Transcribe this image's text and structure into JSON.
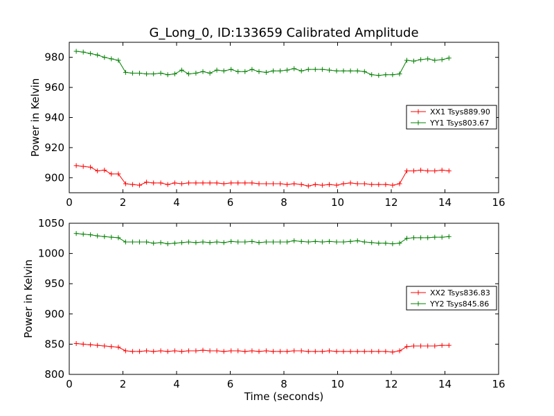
{
  "figure": {
    "title": "G_Long_0, ID:133659 Calibrated Amplitude",
    "xlabel": "Time (seconds)"
  },
  "chart_data": [
    {
      "type": "line",
      "title": "G_Long_0, ID:133659 Calibrated Amplitude",
      "xlabel": "",
      "ylabel": "Power in Kelvin",
      "xlim": [
        0,
        16
      ],
      "ylim": [
        890,
        990
      ],
      "xticks": [
        0,
        2,
        4,
        6,
        8,
        10,
        12,
        14,
        16
      ],
      "yticks": [
        900,
        920,
        940,
        960,
        980
      ],
      "grid": false,
      "legend": "center-right",
      "x": [
        0.26,
        0.52,
        0.79,
        1.05,
        1.31,
        1.57,
        1.83,
        2.1,
        2.36,
        2.62,
        2.88,
        3.14,
        3.41,
        3.67,
        3.93,
        4.19,
        4.45,
        4.72,
        4.98,
        5.24,
        5.5,
        5.76,
        6.03,
        6.29,
        6.55,
        6.81,
        7.07,
        7.34,
        7.6,
        7.86,
        8.12,
        8.38,
        8.65,
        8.91,
        9.17,
        9.43,
        9.69,
        9.96,
        10.22,
        10.48,
        10.74,
        11.0,
        11.27,
        11.53,
        11.79,
        12.05,
        12.31,
        12.58,
        12.84,
        13.1,
        13.36,
        13.62,
        13.89,
        14.15
      ],
      "series": [
        {
          "name": "XX1 Tsys889.90",
          "color": "#ff0000",
          "values": [
            908,
            907.5,
            907,
            904.5,
            905,
            902.5,
            902.5,
            896,
            895.5,
            895,
            897,
            896.5,
            896.5,
            895.5,
            896.5,
            896,
            896.5,
            896.5,
            896.5,
            896.5,
            896.5,
            896,
            896.5,
            896.5,
            896.5,
            896.5,
            896,
            896,
            896,
            896,
            895.5,
            896,
            895.5,
            894.5,
            895.5,
            895,
            895.5,
            895,
            896,
            896.5,
            896,
            896,
            895.5,
            895.5,
            895.5,
            895,
            896,
            904.5,
            904.5,
            905,
            904.5,
            904.5,
            905,
            904.5
          ]
        },
        {
          "name": "YY1 Tsys803.67",
          "color": "#008000",
          "values": [
            984,
            983.5,
            982.5,
            981.5,
            980,
            979,
            978,
            970,
            969.5,
            969.5,
            969,
            969,
            969.5,
            968.5,
            969,
            971.5,
            969,
            969.5,
            970.5,
            969.5,
            971.5,
            971,
            972,
            970.5,
            970.5,
            972,
            970.5,
            970,
            971,
            971,
            971.5,
            972.5,
            971,
            972,
            972,
            972,
            971.5,
            971,
            971,
            971,
            971,
            970.5,
            968.5,
            968,
            968.5,
            968.5,
            969,
            978,
            977.5,
            978.5,
            979,
            978,
            978.5,
            979.5
          ]
        }
      ]
    },
    {
      "type": "line",
      "title": "",
      "xlabel": "Time (seconds)",
      "ylabel": "Power in Kelvin",
      "xlim": [
        0,
        16
      ],
      "ylim": [
        800,
        1050
      ],
      "xticks": [
        0,
        2,
        4,
        6,
        8,
        10,
        12,
        14,
        16
      ],
      "yticks": [
        800,
        850,
        900,
        950,
        1000,
        1050
      ],
      "grid": false,
      "legend": "center-right",
      "x": [
        0.26,
        0.52,
        0.79,
        1.05,
        1.31,
        1.57,
        1.83,
        2.1,
        2.36,
        2.62,
        2.88,
        3.14,
        3.41,
        3.67,
        3.93,
        4.19,
        4.45,
        4.72,
        4.98,
        5.24,
        5.5,
        5.76,
        6.03,
        6.29,
        6.55,
        6.81,
        7.07,
        7.34,
        7.6,
        7.86,
        8.12,
        8.38,
        8.65,
        8.91,
        9.17,
        9.43,
        9.69,
        9.96,
        10.22,
        10.48,
        10.74,
        11.0,
        11.27,
        11.53,
        11.79,
        12.05,
        12.31,
        12.58,
        12.84,
        13.1,
        13.36,
        13.62,
        13.89,
        14.15
      ],
      "series": [
        {
          "name": "XX2 Tsys836.83",
          "color": "#ff0000",
          "values": [
            851,
            850,
            849,
            848,
            847,
            846,
            845,
            839,
            838,
            838,
            839,
            838,
            839,
            838,
            839,
            838,
            839,
            839,
            840,
            839,
            839,
            838,
            839,
            839,
            838,
            839,
            838,
            839,
            838,
            838,
            838,
            839,
            839,
            838,
            838,
            838,
            839,
            838,
            838,
            838,
            838,
            838,
            838,
            838,
            838,
            837,
            839,
            846,
            847,
            847,
            847,
            847,
            848,
            848
          ]
        },
        {
          "name": "YY2 Tsys845.86",
          "color": "#008000",
          "values": [
            1033,
            1032,
            1031,
            1029,
            1028,
            1027,
            1026,
            1019,
            1019,
            1019,
            1019,
            1017,
            1018,
            1016,
            1017,
            1018,
            1019,
            1018,
            1019,
            1018,
            1019,
            1018,
            1020,
            1019,
            1019,
            1020,
            1018,
            1019,
            1019,
            1019,
            1019,
            1021,
            1020,
            1019,
            1020,
            1019,
            1020,
            1019,
            1019,
            1020,
            1021,
            1019,
            1018,
            1017,
            1017,
            1016,
            1017,
            1025,
            1026,
            1026,
            1026,
            1027,
            1027,
            1028
          ]
        }
      ]
    }
  ]
}
